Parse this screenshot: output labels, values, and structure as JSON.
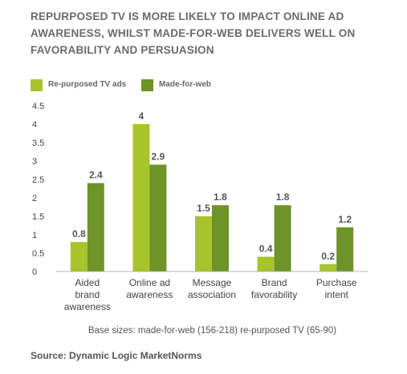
{
  "title_lines": [
    "REPURPOSED TV IS MORE LIKELY TO IMPACT ONLINE AD",
    "AWARENESS, WHILST MADE-FOR-WEB DELIVERS WELL ON",
    "FAVORABILITY AND PERSUASION"
  ],
  "note": "Base sizes: made-for-web (156-218) re-purposed TV  (65-90)",
  "source": "Source: Dynamic Logic MarketNorms",
  "chart_data": {
    "type": "bar",
    "title": "",
    "xlabel": "",
    "ylabel": "",
    "ylim": [
      0,
      4.5
    ],
    "yticks": [
      0,
      0.5,
      1,
      1.5,
      2,
      2.5,
      3,
      3.5,
      4,
      4.5
    ],
    "ytick_labels": [
      "0",
      "0.5",
      "1",
      "1.5",
      "2",
      "2.5",
      "3",
      "3.5",
      "4",
      "4.5"
    ],
    "grid": false,
    "legend_position": "top-left",
    "categories": [
      [
        "Aided",
        "brand",
        "awareness"
      ],
      [
        "Online ad",
        "awareness"
      ],
      [
        "Message",
        "association"
      ],
      [
        "Brand",
        "favorability"
      ],
      [
        "Purchase",
        "intent"
      ]
    ],
    "series": [
      {
        "name": "Re-purposed TV ads",
        "color": "#a8c42b",
        "values": [
          0.8,
          4,
          1.5,
          0.4,
          0.2
        ],
        "labels": [
          "0.8",
          "4",
          "1.5",
          "0.4",
          "0.2"
        ]
      },
      {
        "name": "Made-for-web",
        "color": "#6e9328",
        "values": [
          2.4,
          2.9,
          1.8,
          1.8,
          1.2
        ],
        "labels": [
          "2.4",
          "2.9",
          "1.8",
          "1.8",
          "1.2"
        ]
      }
    ]
  }
}
